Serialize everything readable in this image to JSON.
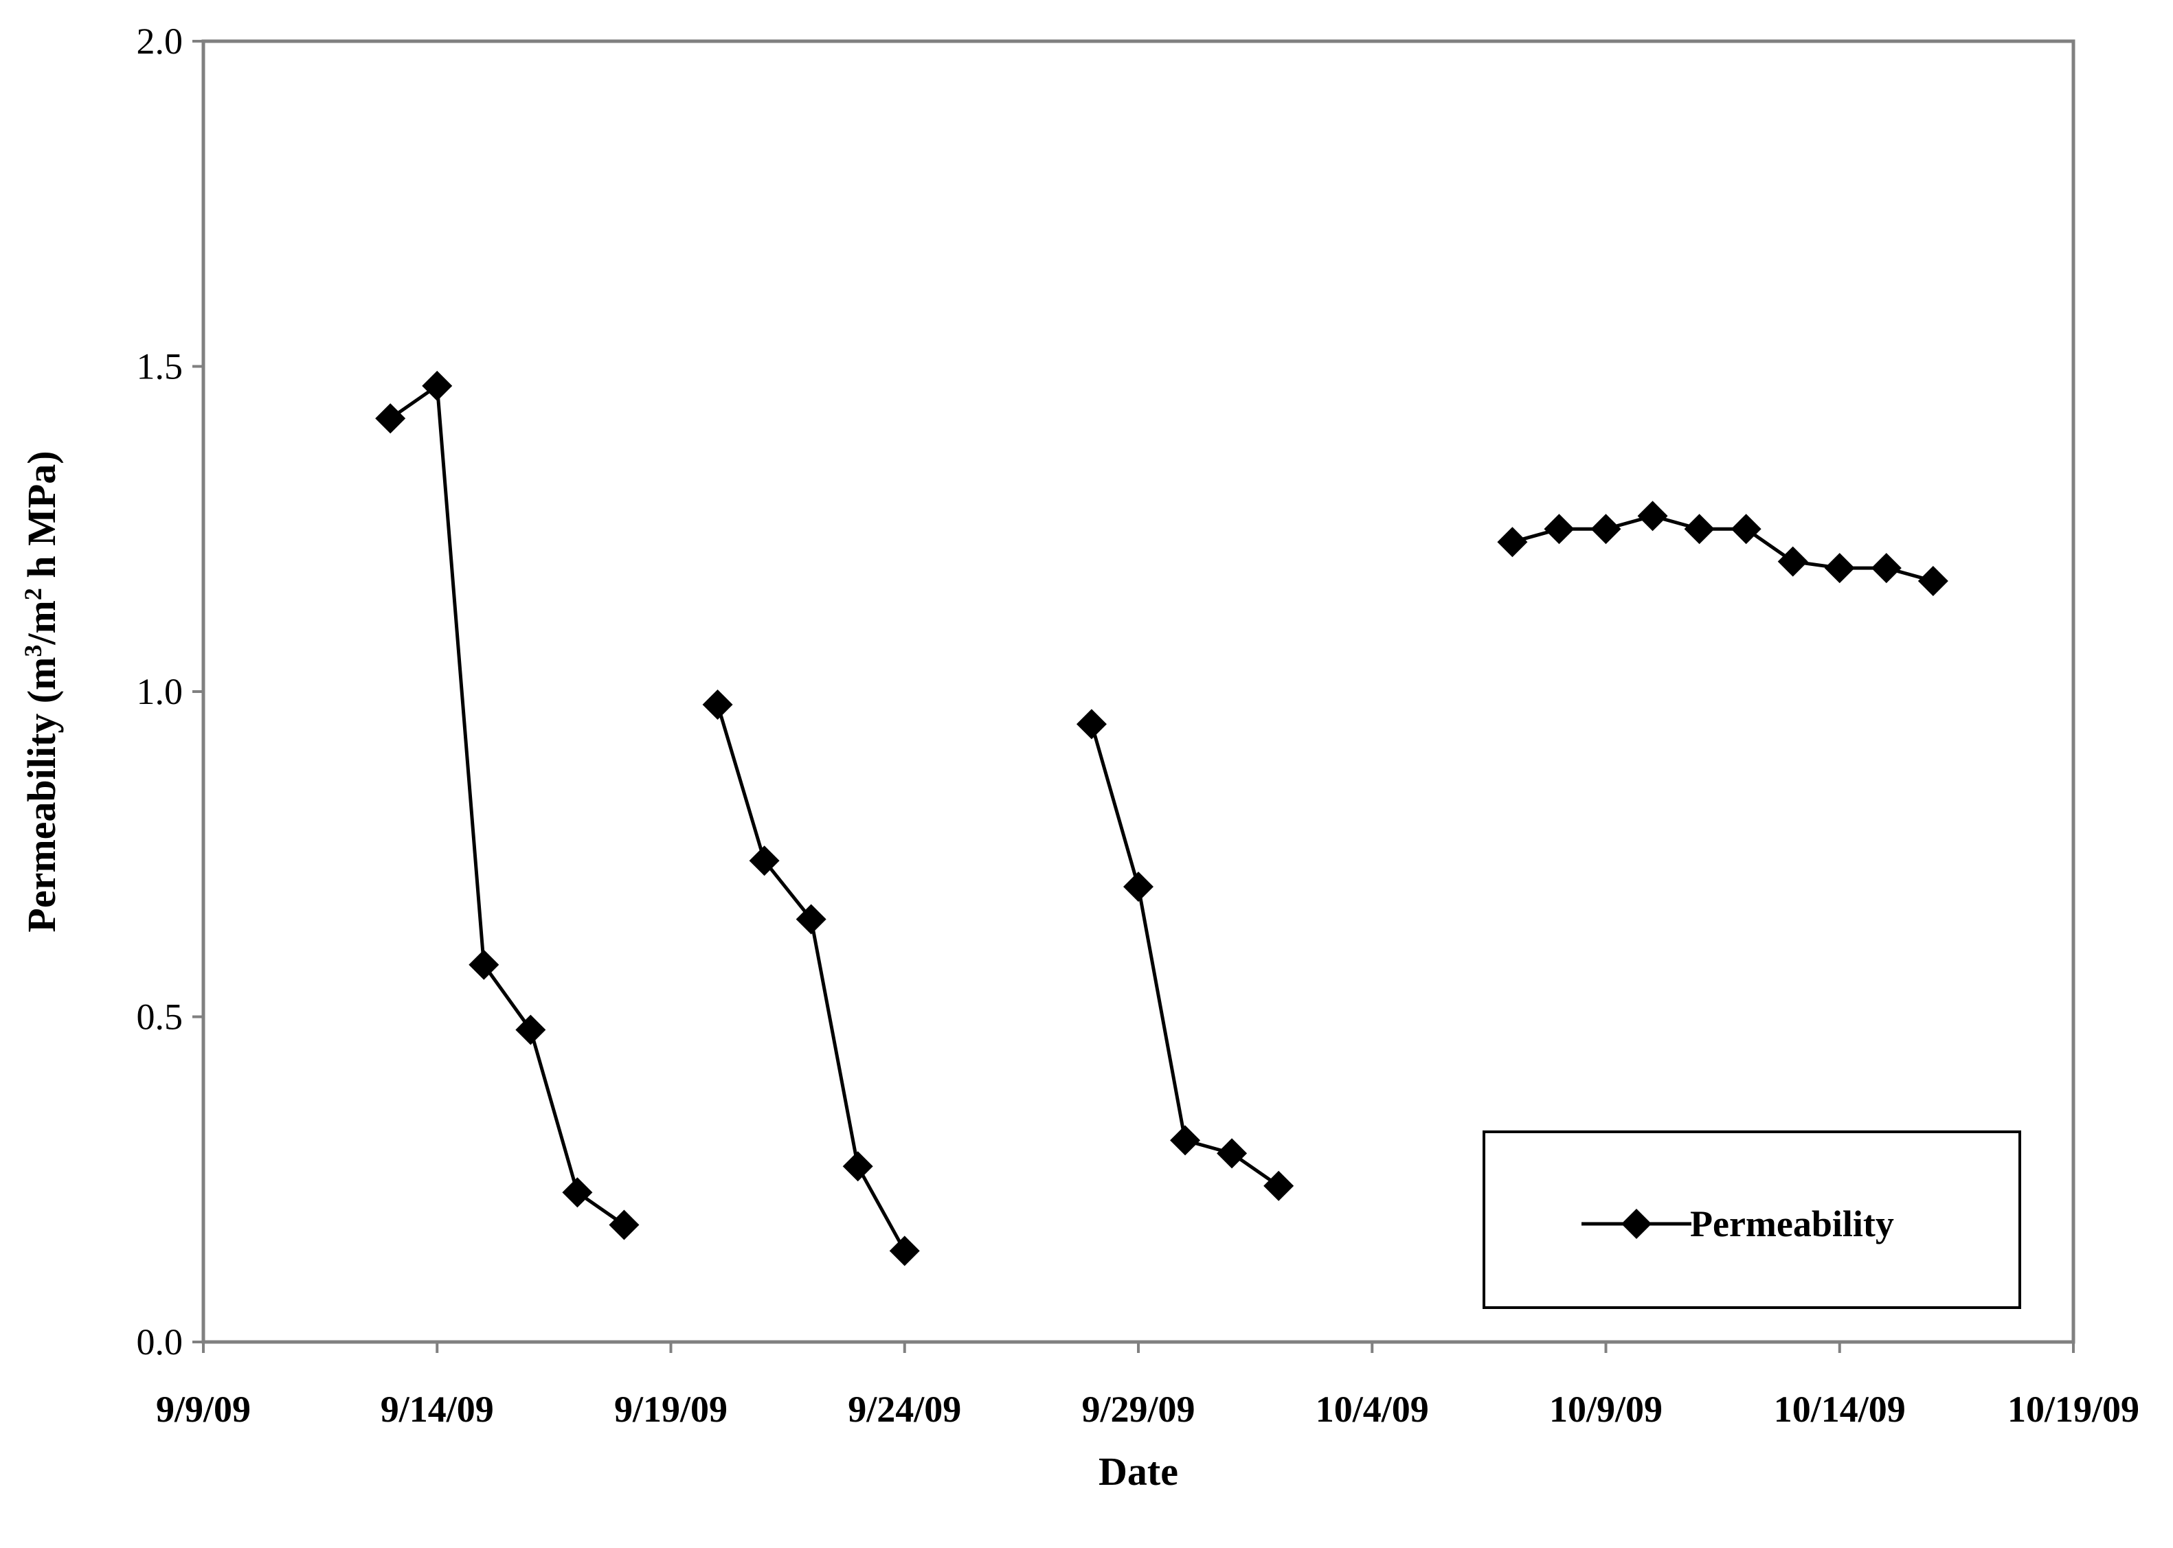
{
  "chart_data": {
    "type": "line",
    "title": "",
    "xlabel": "Date",
    "ylabel_parts": {
      "base": "Permeability  (m",
      "sup1": "3",
      "mid": "/m",
      "sup2": "2",
      "end": " h MPa)"
    },
    "xlim": [
      "2009-09-09",
      "2009-10-19"
    ],
    "ylim": [
      0.0,
      2.0
    ],
    "x_ticks": [
      {
        "date": "2009-09-09",
        "label": "9/9/09"
      },
      {
        "date": "2009-09-14",
        "label": "9/14/09"
      },
      {
        "date": "2009-09-19",
        "label": "9/19/09"
      },
      {
        "date": "2009-09-24",
        "label": "9/24/09"
      },
      {
        "date": "2009-09-29",
        "label": "9/29/09"
      },
      {
        "date": "2009-10-04",
        "label": "10/4/09"
      },
      {
        "date": "2009-10-09",
        "label": "10/9/09"
      },
      {
        "date": "2009-10-14",
        "label": "10/14/09"
      },
      {
        "date": "2009-10-19",
        "label": "10/19/09"
      }
    ],
    "y_ticks": [
      {
        "value": 0.0,
        "label": "0.0"
      },
      {
        "value": 0.5,
        "label": "0.5"
      },
      {
        "value": 1.0,
        "label": "1.0"
      },
      {
        "value": 1.5,
        "label": "1.5"
      },
      {
        "value": 2.0,
        "label": "2.0"
      }
    ],
    "grid": false,
    "legend": {
      "position": "bottom-right",
      "entries": [
        "Permeability"
      ]
    },
    "series": [
      {
        "name": "Permeability",
        "marker": "diamond",
        "color": "#000000",
        "segments": [
          [
            {
              "x": "2009-09-13",
              "y": 1.42
            },
            {
              "x": "2009-09-14",
              "y": 1.47
            },
            {
              "x": "2009-09-15",
              "y": 0.58
            },
            {
              "x": "2009-09-16",
              "y": 0.48
            },
            {
              "x": "2009-09-17",
              "y": 0.23
            },
            {
              "x": "2009-09-18",
              "y": 0.18
            }
          ],
          [
            {
              "x": "2009-09-20",
              "y": 0.98
            },
            {
              "x": "2009-09-21",
              "y": 0.74
            },
            {
              "x": "2009-09-22",
              "y": 0.65
            },
            {
              "x": "2009-09-23",
              "y": 0.27
            },
            {
              "x": "2009-09-24",
              "y": 0.14
            }
          ],
          [
            {
              "x": "2009-09-28",
              "y": 0.95
            },
            {
              "x": "2009-09-29",
              "y": 0.7
            },
            {
              "x": "2009-09-30",
              "y": 0.31
            },
            {
              "x": "2009-10-01",
              "y": 0.29
            },
            {
              "x": "2009-10-02",
              "y": 0.24
            }
          ],
          [
            {
              "x": "2009-10-07",
              "y": 1.23
            },
            {
              "x": "2009-10-08",
              "y": 1.25
            },
            {
              "x": "2009-10-09",
              "y": 1.25
            },
            {
              "x": "2009-10-10",
              "y": 1.27
            },
            {
              "x": "2009-10-11",
              "y": 1.25
            },
            {
              "x": "2009-10-12",
              "y": 1.25
            },
            {
              "x": "2009-10-13",
              "y": 1.2
            },
            {
              "x": "2009-10-14",
              "y": 1.19
            },
            {
              "x": "2009-10-15",
              "y": 1.19
            },
            {
              "x": "2009-10-16",
              "y": 1.17
            }
          ]
        ]
      }
    ]
  }
}
